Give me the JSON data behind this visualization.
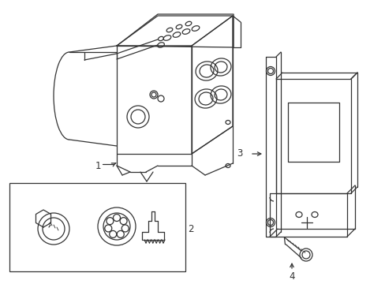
{
  "background_color": "#ffffff",
  "line_color": "#333333",
  "line_width": 0.9,
  "figsize": [
    4.89,
    3.6
  ],
  "dpi": 100,
  "font_size": 8.5
}
